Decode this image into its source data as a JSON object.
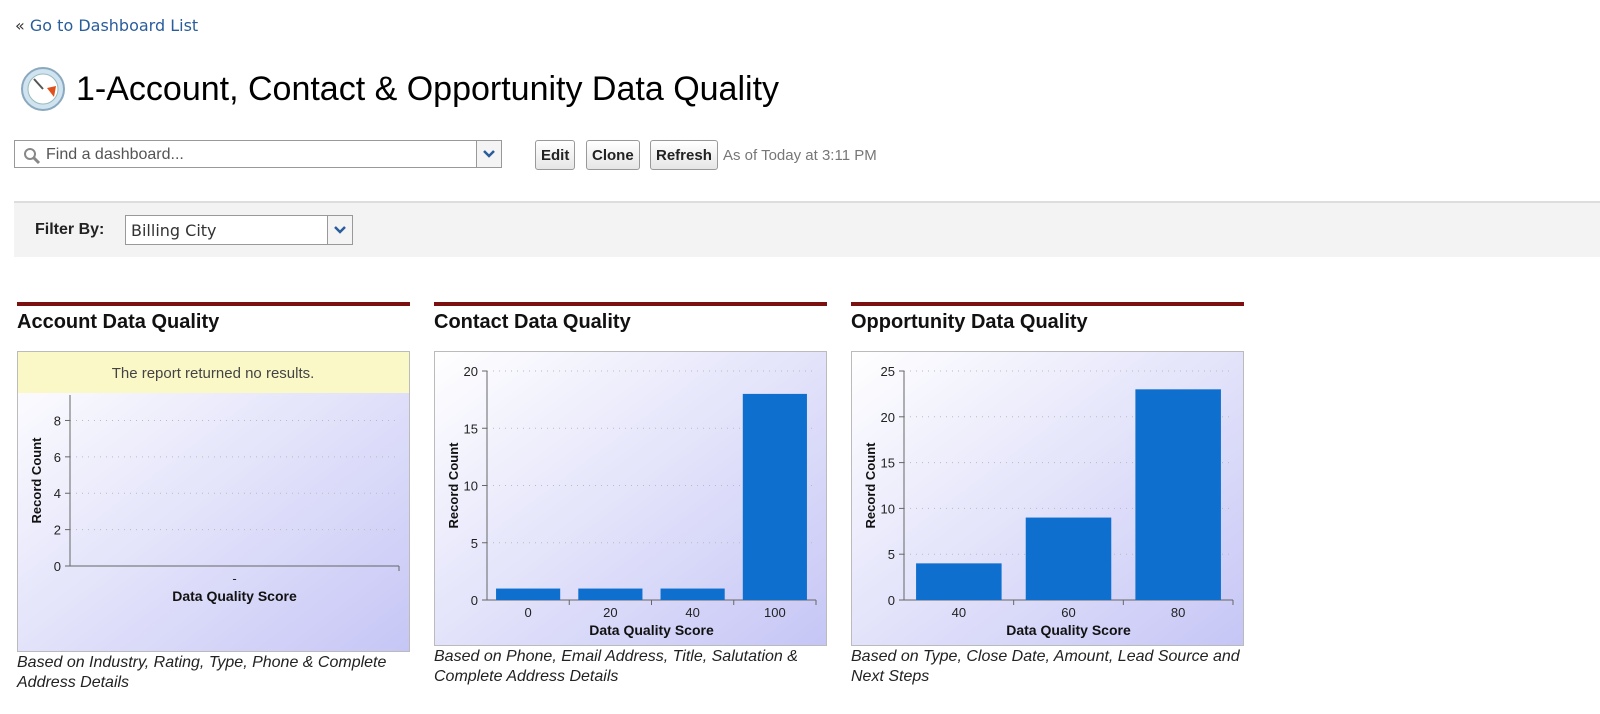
{
  "nav": {
    "back_prefix": "«",
    "back_link": "Go to Dashboard List"
  },
  "header": {
    "title": "1-Account, Contact & Opportunity Data Quality"
  },
  "toolbar": {
    "search_placeholder": "Find a dashboard...",
    "buttons": [
      "Edit",
      "Clone",
      "Refresh"
    ],
    "timestamp": "As of Today at 3:11 PM"
  },
  "filter": {
    "label": "Filter By:",
    "value": "Billing City"
  },
  "chart_data": [
    {
      "type": "bar",
      "title": "Account Data Quality",
      "message": "The report returned no results.",
      "categories": [
        "-"
      ],
      "values": [
        null
      ],
      "color": "#0f6fcf",
      "ylim": [
        0,
        9.4
      ],
      "yticks": [
        0,
        2,
        4,
        6,
        8
      ],
      "grid": true,
      "xlabel": "Data Quality Score",
      "ylabel": "Record Count",
      "footnote": "Based on Industry, Rating, Type, Phone & Complete Address Details"
    },
    {
      "type": "bar",
      "title": "Contact Data Quality",
      "categories": [
        "0",
        "20",
        "40",
        "100"
      ],
      "values": [
        1,
        1,
        1,
        18
      ],
      "color": "#0f6fcf",
      "ylim": [
        0,
        20
      ],
      "yticks": [
        0,
        5,
        10,
        15,
        20
      ],
      "grid": true,
      "xlabel": "Data Quality Score",
      "ylabel": "Record Count",
      "footnote": "Based on Phone, Email Address, Title, Salutation & Complete Address Details"
    },
    {
      "type": "bar",
      "title": "Opportunity Data Quality",
      "categories": [
        "40",
        "60",
        "80"
      ],
      "values": [
        4,
        9,
        23
      ],
      "color": "#0f6fcf",
      "ylim": [
        0,
        25
      ],
      "yticks": [
        0,
        5,
        10,
        15,
        20,
        25
      ],
      "grid": true,
      "xlabel": "Data Quality Score",
      "ylabel": "Record Count",
      "footnote": "Based on Type, Close Date, Amount, Lead Source and Next Steps"
    }
  ]
}
